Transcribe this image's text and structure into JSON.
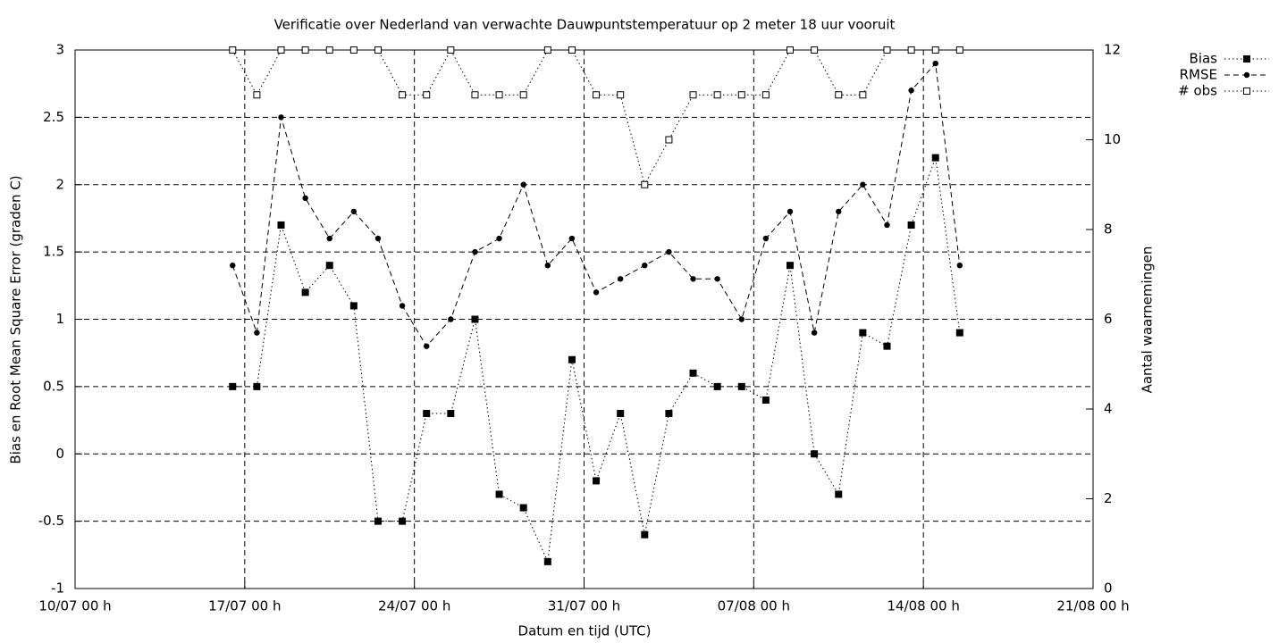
{
  "chart_data": {
    "type": "line",
    "title": "Verificatie over Nederland van verwachte Dauwpuntstemperatuur op 2 meter 18 uur vooruit",
    "x_label": "Datum en tijd (UTC)",
    "y_label": "Bias en Root Mean Square Error (graden C)",
    "y2_label": "Aantal waarnemingen",
    "x": [
      6.5,
      7.5,
      8.5,
      9.5,
      10.5,
      11.5,
      12.5,
      13.5,
      14.5,
      15.5,
      16.5,
      17.5,
      18.5,
      19.5,
      20.5,
      21.5,
      22.5,
      23.5,
      24.5,
      25.5,
      26.5,
      27.5,
      28.5,
      29.5,
      30.5,
      31.5,
      32.5,
      33.5,
      34.5,
      35.5,
      36.5
    ],
    "series": [
      {
        "name": "Bias",
        "color": "#000000",
        "values": [
          0.5,
          0.5,
          1.7,
          1.2,
          1.4,
          1.1,
          -0.5,
          -0.5,
          0.3,
          0.3,
          1.0,
          -0.3,
          -0.4,
          -0.8,
          0.7,
          -0.2,
          0.3,
          -0.6,
          0.3,
          0.6,
          0.5,
          0.5,
          0.4,
          1.4,
          0.0,
          -0.3,
          0.9,
          0.8,
          1.7,
          2.2,
          0.9
        ]
      },
      {
        "name": "RMSE",
        "color": "#000000",
        "values": [
          1.4,
          0.9,
          2.5,
          1.9,
          1.6,
          1.8,
          1.6,
          1.1,
          0.8,
          1.0,
          1.5,
          1.6,
          2.0,
          1.4,
          1.6,
          1.2,
          1.3,
          1.4,
          1.5,
          1.3,
          1.3,
          1.0,
          1.6,
          1.8,
          0.9,
          1.8,
          2.0,
          1.7,
          2.7,
          2.9,
          1.4
        ]
      },
      {
        "name": "# obs",
        "color": "#000000",
        "axis": "y2",
        "values": [
          12,
          11,
          12,
          12,
          12,
          12,
          12,
          11,
          11,
          12,
          11,
          11,
          11,
          12,
          12,
          11,
          11,
          9,
          10,
          11,
          11,
          11,
          11,
          12,
          12,
          11,
          11,
          12,
          12,
          12,
          12
        ]
      }
    ],
    "xlim": [
      0,
      42
    ],
    "xticks": [
      {
        "value": 0,
        "label": "10/07 00 h"
      },
      {
        "value": 7,
        "label": "17/07 00 h"
      },
      {
        "value": 14,
        "label": "24/07 00 h"
      },
      {
        "value": 21,
        "label": "31/07 00 h"
      },
      {
        "value": 28,
        "label": "07/08 00 h"
      },
      {
        "value": 35,
        "label": "14/08 00 h"
      },
      {
        "value": 42,
        "label": "21/08 00 h"
      }
    ],
    "ylim": [
      -1,
      3
    ],
    "yticks": [
      -1,
      -0.5,
      0,
      0.5,
      1,
      1.5,
      2,
      2.5,
      3
    ],
    "y2lim": [
      0,
      12
    ],
    "y2ticks": [
      0,
      2,
      4,
      6,
      8,
      10,
      12
    ],
    "grid": true
  }
}
